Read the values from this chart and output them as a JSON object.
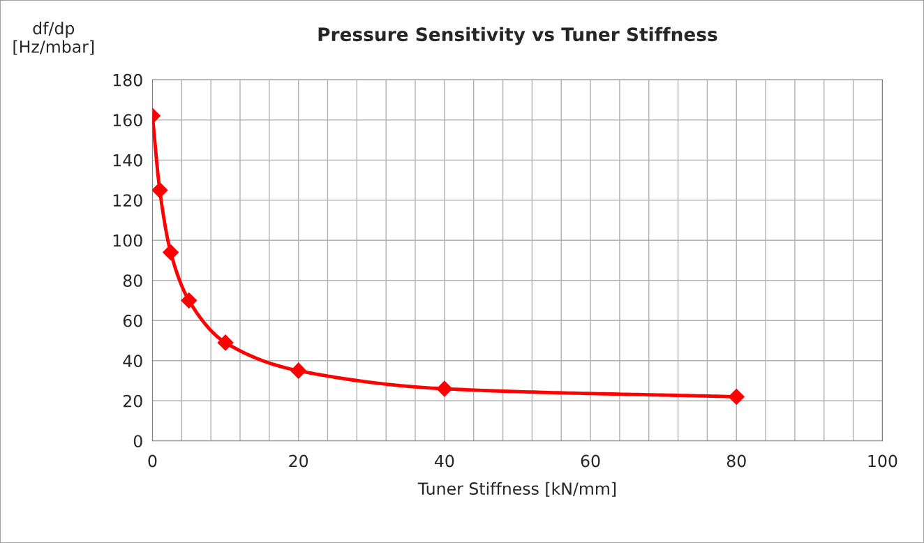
{
  "chart_data": {
    "type": "line",
    "title": "Pressure Sensitivity vs Tuner Stiffness",
    "xlabel": "Tuner Stiffness [kN/mm]",
    "ylabel": "df/dp\n[Hz/mbar]",
    "x": [
      0,
      1,
      2.5,
      5,
      10,
      20,
      40,
      80
    ],
    "series": [
      {
        "color": "#ff0000",
        "values": [
          162,
          125,
          94,
          70,
          49,
          35,
          26,
          22
        ]
      }
    ],
    "xlim": [
      0,
      100
    ],
    "ylim": [
      0,
      180
    ],
    "xticks": [
      0,
      {
        "value": 4,
        "label": null
      },
      {
        "value": 8,
        "label": null
      },
      {
        "value": 12,
        "label": null
      },
      {
        "value": 16,
        "label": null
      },
      20,
      {
        "value": 24,
        "label": null
      },
      {
        "value": 28,
        "label": null
      },
      {
        "value": 32,
        "label": null
      },
      {
        "value": 36,
        "label": null
      },
      40,
      {
        "value": 44,
        "label": null
      },
      {
        "value": 48,
        "label": null
      },
      {
        "value": 52,
        "label": null
      },
      {
        "value": 56,
        "label": null
      },
      60,
      {
        "value": 64,
        "label": null
      },
      {
        "value": 68,
        "label": null
      },
      {
        "value": 72,
        "label": null
      },
      {
        "value": 76,
        "label": null
      },
      80,
      {
        "value": 84,
        "label": null
      },
      {
        "value": 88,
        "label": null
      },
      {
        "value": 92,
        "label": null
      },
      {
        "value": 96,
        "label": null
      },
      100
    ],
    "yticks": [
      0,
      20,
      40,
      60,
      80,
      100,
      120,
      140,
      160,
      180
    ],
    "grid": true,
    "marker": "diamond",
    "line_style": "solid"
  }
}
